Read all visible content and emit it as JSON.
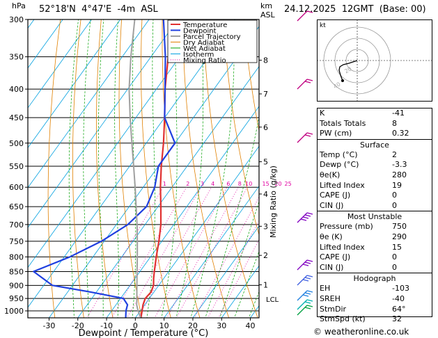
{
  "header": {
    "location": "52°18'N  4°47'E  -4m  ASL",
    "datetime": "24.12.2025  12GMT  (Base: 00)",
    "hpa_label": "hPa",
    "km_label": "km",
    "asl_label": "ASL"
  },
  "footer": {
    "credit": "© weatheronline.co.uk"
  },
  "colors": {
    "temperature": "#e03030",
    "dewpoint": "#2040e0",
    "parcel": "#a0a0a0",
    "dry_adiabat": "#e08000",
    "wet_adiabat": "#00a000",
    "isotherm": "#00a0e0",
    "mixing_ratio": "#e000a0"
  },
  "chart_data": {
    "type": "line",
    "title": "Skew-T log-P diagram",
    "xlabel": "Dewpoint / Temperature (°C)",
    "ylabel": "hPa",
    "xlim": [
      -35,
      40
    ],
    "ylim": [
      1050,
      300
    ],
    "x_ticks": [
      "-30",
      "-20",
      "-10",
      "0",
      "10",
      "20",
      "30",
      "40"
    ],
    "x_tick_values": [
      -30,
      -20,
      -10,
      0,
      10,
      20,
      30,
      40
    ],
    "pressure_ticks": [
      "300",
      "350",
      "400",
      "450",
      "500",
      "550",
      "600",
      "650",
      "700",
      "750",
      "800",
      "850",
      "900",
      "950",
      "1000"
    ],
    "pressure_tick_values": [
      300,
      350,
      400,
      450,
      500,
      550,
      600,
      650,
      700,
      750,
      800,
      850,
      900,
      950,
      1000
    ],
    "km_ticks": [
      "1",
      "2",
      "3",
      "4",
      "5",
      "6",
      "7",
      "8"
    ],
    "km_tick_pressures": [
      898,
      795,
      705,
      617,
      540,
      468,
      408,
      355
    ],
    "lcl_label": "LCL",
    "lcl_pressure": 952,
    "mixing_ratio_axis_label": "Mixing Ratio (g/kg)",
    "mixing_ratio_values": [
      "1",
      "2",
      "3",
      "4",
      "6",
      "8",
      "10",
      "15",
      "20",
      "25"
    ],
    "legend": [
      "Temperature",
      "Dewpoint",
      "Parcel Trajectory",
      "Dry Adiabat",
      "Wet Adiabat",
      "Isotherm",
      "Mixing Ratio"
    ],
    "series": [
      {
        "name": "Temperature",
        "points": [
          [
            1030,
            2
          ],
          [
            1000,
            0.6
          ],
          [
            975,
            -0.6
          ],
          [
            950,
            -1.4
          ],
          [
            925,
            -1
          ],
          [
            900,
            -1.8
          ],
          [
            875,
            -3.5
          ],
          [
            850,
            -5
          ],
          [
            800,
            -8
          ],
          [
            750,
            -11
          ],
          [
            700,
            -14.5
          ],
          [
            650,
            -19
          ],
          [
            600,
            -24
          ],
          [
            550,
            -29
          ],
          [
            500,
            -34
          ],
          [
            450,
            -40
          ],
          [
            400,
            -47
          ],
          [
            350,
            -54
          ],
          [
            300,
            -60
          ]
        ]
      },
      {
        "name": "Dewpoint",
        "points": [
          [
            1030,
            -3.3
          ],
          [
            1000,
            -5
          ],
          [
            975,
            -6
          ],
          [
            950,
            -9
          ],
          [
            925,
            -22
          ],
          [
            900,
            -37
          ],
          [
            850,
            -47
          ],
          [
            800,
            -38
          ],
          [
            750,
            -31
          ],
          [
            700,
            -26
          ],
          [
            650,
            -24
          ],
          [
            600,
            -26
          ],
          [
            550,
            -30
          ],
          [
            500,
            -30
          ],
          [
            450,
            -40
          ],
          [
            400,
            -47
          ],
          [
            350,
            -55
          ],
          [
            300,
            -65
          ]
        ]
      },
      {
        "name": "Parcel Trajectory",
        "points": [
          [
            1030,
            2
          ],
          [
            1000,
            -0.8
          ],
          [
            975,
            -2.8
          ],
          [
            952,
            -4.2
          ],
          [
            900,
            -7.6
          ],
          [
            850,
            -11
          ],
          [
            800,
            -14.6
          ],
          [
            750,
            -18.5
          ],
          [
            700,
            -22.8
          ],
          [
            650,
            -27.6
          ],
          [
            600,
            -32.8
          ],
          [
            550,
            -38.6
          ],
          [
            500,
            -45
          ],
          [
            450,
            -52
          ],
          [
            400,
            -59.5
          ],
          [
            350,
            -67
          ],
          [
            300,
            -75
          ]
        ]
      }
    ]
  },
  "hodograph": {
    "label": "kt",
    "ring_labels": [
      "20",
      "40"
    ]
  },
  "indices": {
    "rows": [
      {
        "label": "K",
        "value": "-41"
      },
      {
        "label": "Totals Totals",
        "value": "8"
      },
      {
        "label": "PW (cm)",
        "value": "0.32"
      }
    ]
  },
  "surface": {
    "title": "Surface",
    "rows": [
      {
        "label": "Temp (°C)",
        "value": "2"
      },
      {
        "label": "Dewp (°C)",
        "value": "-3.3"
      },
      {
        "label": "θe(K)",
        "value": "280"
      },
      {
        "label": "Lifted Index",
        "value": "19"
      },
      {
        "label": "CAPE (J)",
        "value": "0"
      },
      {
        "label": "CIN (J)",
        "value": "0"
      }
    ]
  },
  "most_unstable": {
    "title": "Most Unstable",
    "rows": [
      {
        "label": "Pressure (mb)",
        "value": "750"
      },
      {
        "label": "θe (K)",
        "value": "290"
      },
      {
        "label": "Lifted Index",
        "value": "15"
      },
      {
        "label": "CAPE (J)",
        "value": "0"
      },
      {
        "label": "CIN (J)",
        "value": "0"
      }
    ]
  },
  "hodograph_table": {
    "title": "Hodograph",
    "rows": [
      {
        "label": "EH",
        "value": "-103"
      },
      {
        "label": "SREH",
        "value": "-40"
      },
      {
        "label": "StmDir",
        "value": "64°"
      },
      {
        "label": "StmSpd (kt)",
        "value": "32"
      }
    ]
  }
}
